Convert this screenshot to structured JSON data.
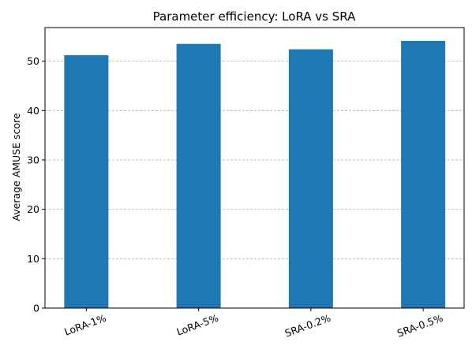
{
  "chart_data": {
    "type": "bar",
    "title": "Parameter efficiency: LoRA vs SRA",
    "xlabel": "",
    "ylabel": "Average AMUSE score",
    "categories": [
      "LoRA-1%",
      "LoRA-5%",
      "SRA-0.2%",
      "SRA-0.5%"
    ],
    "values": [
      51.2,
      53.5,
      52.4,
      54.1
    ],
    "ylim": [
      0,
      56.8
    ],
    "yticks": [
      0,
      10,
      20,
      30,
      40,
      50
    ],
    "grid": "y-dashed",
    "bar_color": "#1f77b4"
  }
}
